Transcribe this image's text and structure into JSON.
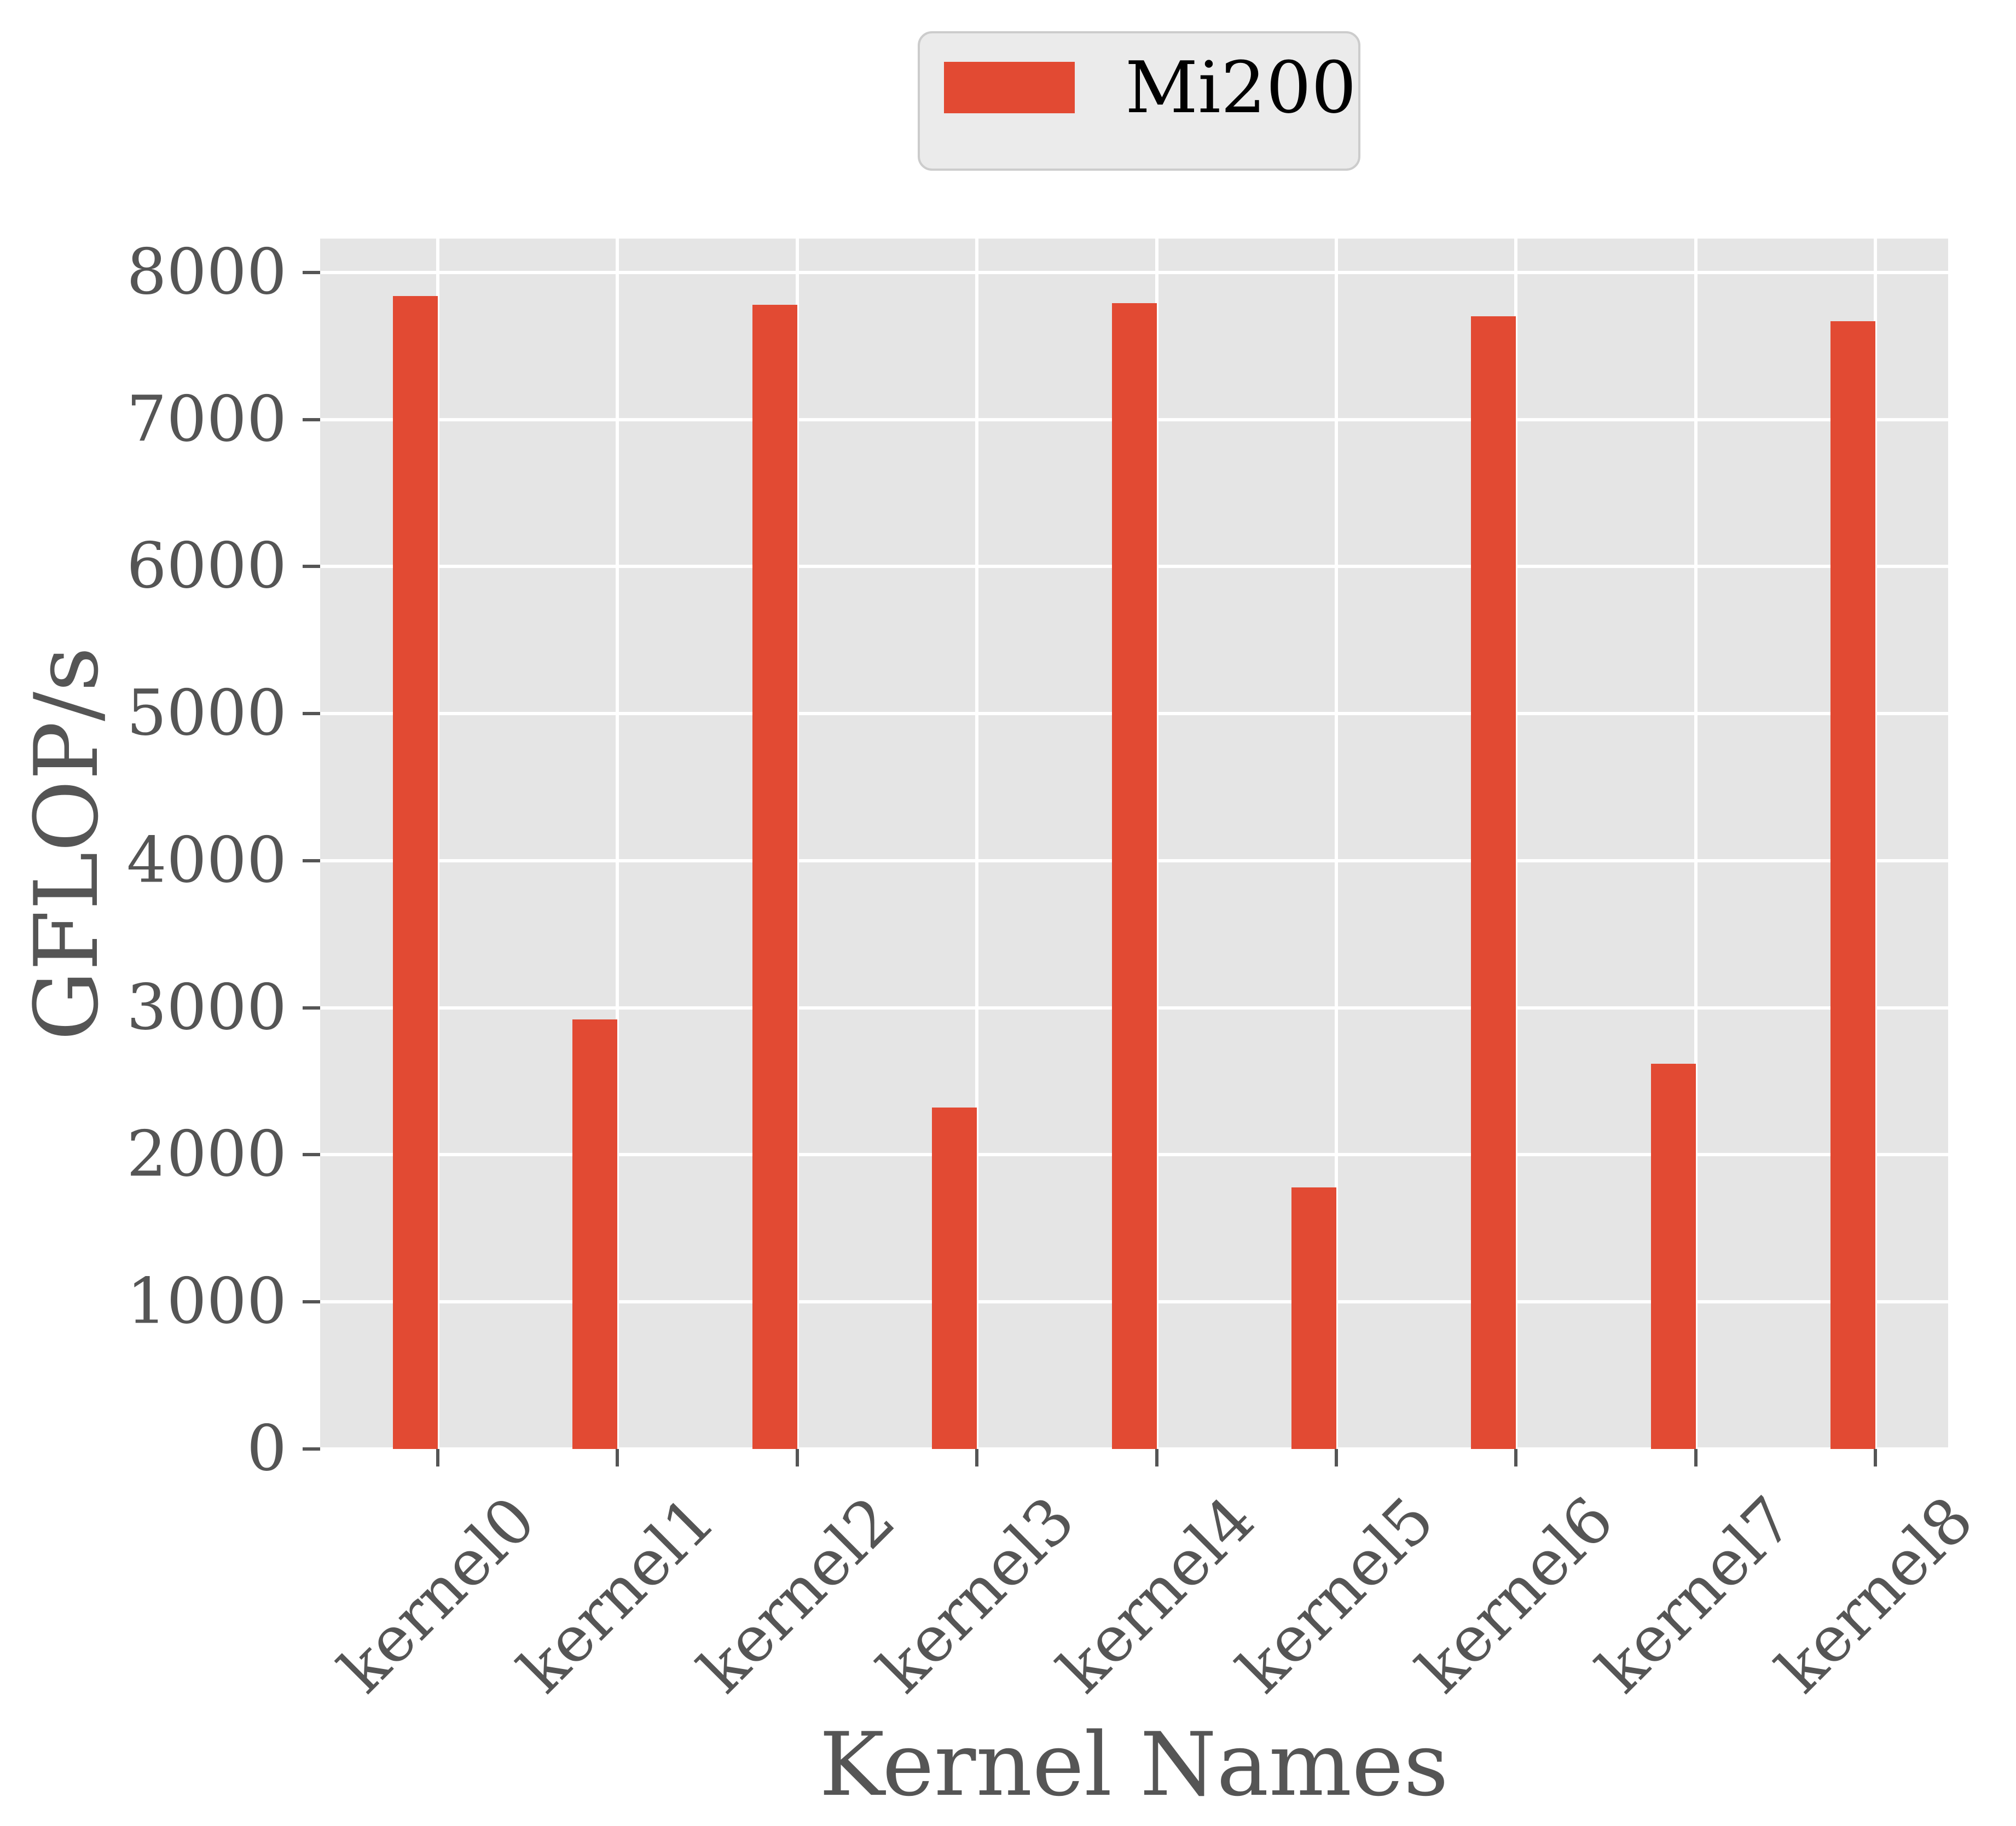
{
  "chart_data": {
    "type": "bar",
    "categories": [
      "kernel0",
      "kernel1",
      "kernel2",
      "kernel3",
      "kernel4",
      "kernel5",
      "kernel6",
      "kernel7",
      "kernel8"
    ],
    "series": [
      {
        "name": "Mi200",
        "values": [
          7840,
          2920,
          7780,
          2320,
          7790,
          1780,
          7700,
          2620,
          7670
        ]
      }
    ],
    "title": "",
    "xlabel": "Kernel Names",
    "ylabel": "GFLOP/s",
    "ylim": [
      0,
      8230
    ],
    "yticks": [
      0,
      1000,
      2000,
      3000,
      4000,
      5000,
      6000,
      7000,
      8000
    ],
    "grid": true,
    "legend_position": "upper center outside",
    "colors": {
      "bar": "#E24A33",
      "plot_background": "#E5E5E5",
      "figure_background": "#FFFFFF",
      "grid": "#FFFFFF",
      "tick_text": "#555555",
      "axis_label_text": "#555555",
      "legend_background": "#EBEBEB",
      "legend_border": "#CCCCCC",
      "legend_text": "#000000"
    }
  }
}
